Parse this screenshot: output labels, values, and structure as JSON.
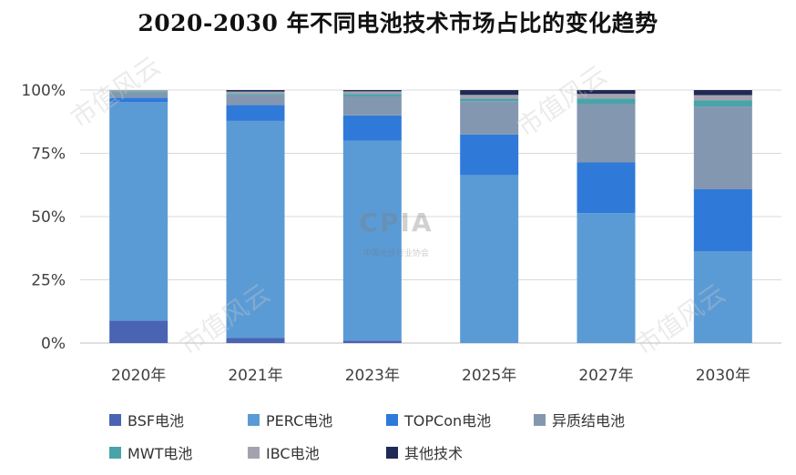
{
  "chart_data": {
    "type": "bar",
    "stacked": true,
    "title": "2020-2030 年不同电池技术市场占比的变化趋势",
    "categories": [
      "2020年",
      "2021年",
      "2023年",
      "2025年",
      "2027年",
      "2030年"
    ],
    "y_ticks": [
      "0%",
      "25%",
      "50%",
      "75%",
      "100%"
    ],
    "ylim": [
      0,
      100
    ],
    "grid": true,
    "legend_position": "bottom",
    "series": [
      {
        "name": "BSF电池",
        "color": "#4a63b3",
        "values": [
          8.8,
          2.0,
          1.0,
          0,
          0,
          0
        ]
      },
      {
        "name": "PERC电池",
        "color": "#5b9bd5",
        "values": [
          86.4,
          85.8,
          79.0,
          66.4,
          51.4,
          36.2
        ]
      },
      {
        "name": "TOPCon电池",
        "color": "#2f7ad9",
        "values": [
          1.8,
          6.3,
          10.0,
          16.0,
          20.0,
          24.6
        ]
      },
      {
        "name": "异质结电池",
        "color": "#8497b0",
        "values": [
          2.0,
          3.8,
          7.5,
          13.2,
          23.0,
          32.6
        ]
      },
      {
        "name": "MWT电池",
        "color": "#4aa3a8",
        "values": [
          0.5,
          0.5,
          1.0,
          1.0,
          2.3,
          2.6
        ]
      },
      {
        "name": "IBC电池",
        "color": "#a5a2b0",
        "values": [
          0.5,
          1.0,
          1.0,
          1.5,
          1.8,
          2.0
        ]
      },
      {
        "name": "其他技术",
        "color": "#1f2a55",
        "values": [
          0,
          0.6,
          0.5,
          1.9,
          1.5,
          2.0
        ]
      }
    ]
  },
  "watermark": {
    "logo_text": "CPIA",
    "logo_subtext": "中国光伏行业协会",
    "repeat_text": "市值风云"
  }
}
